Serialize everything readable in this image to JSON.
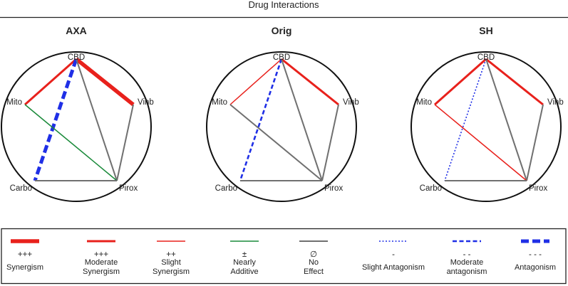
{
  "title": "Drug Interactions",
  "colors": {
    "synergy": "#e8211c",
    "additive": "#1a8a3a",
    "none": "#707070",
    "antagonism": "#1f2fe6",
    "ink": "#222222"
  },
  "nodes": {
    "CBD": "CBD",
    "Vinb": "Vinb",
    "Pirox": "Pirox",
    "Carbo": "Carbo",
    "Mito": "Mito"
  },
  "panels": [
    {
      "title": "AXA",
      "edges": [
        {
          "a": "CBD",
          "b": "Mito",
          "type": "moderate-synergism"
        },
        {
          "a": "CBD",
          "b": "Vinb",
          "type": "synergism"
        },
        {
          "a": "CBD",
          "b": "Carbo",
          "type": "antagonism"
        },
        {
          "a": "CBD",
          "b": "Pirox",
          "type": "no-effect"
        },
        {
          "a": "Vinb",
          "b": "Pirox",
          "type": "no-effect"
        },
        {
          "a": "Mito",
          "b": "Pirox",
          "type": "nearly-additive"
        },
        {
          "a": "Carbo",
          "b": "Pirox",
          "type": "no-effect"
        }
      ]
    },
    {
      "title": "Orig",
      "edges": [
        {
          "a": "CBD",
          "b": "Mito",
          "type": "slight-synergism"
        },
        {
          "a": "CBD",
          "b": "Vinb",
          "type": "moderate-synergism"
        },
        {
          "a": "CBD",
          "b": "Carbo",
          "type": "moderate-antagonism"
        },
        {
          "a": "CBD",
          "b": "Pirox",
          "type": "no-effect"
        },
        {
          "a": "Vinb",
          "b": "Pirox",
          "type": "no-effect"
        },
        {
          "a": "Mito",
          "b": "Pirox",
          "type": "no-effect"
        },
        {
          "a": "Carbo",
          "b": "Pirox",
          "type": "no-effect"
        }
      ]
    },
    {
      "title": "SH",
      "edges": [
        {
          "a": "CBD",
          "b": "Mito",
          "type": "moderate-synergism"
        },
        {
          "a": "CBD",
          "b": "Vinb",
          "type": "moderate-synergism"
        },
        {
          "a": "CBD",
          "b": "Carbo",
          "type": "slight-antagonism"
        },
        {
          "a": "CBD",
          "b": "Pirox",
          "type": "no-effect"
        },
        {
          "a": "Vinb",
          "b": "Pirox",
          "type": "no-effect"
        },
        {
          "a": "Mito",
          "b": "Pirox",
          "type": "slight-synergism"
        },
        {
          "a": "Carbo",
          "b": "Pirox",
          "type": "no-effect"
        }
      ]
    }
  ],
  "legend": [
    {
      "type": "synergism",
      "symbol": "+++",
      "label": [
        "Synergism"
      ]
    },
    {
      "type": "moderate-synergism",
      "symbol": "+++",
      "label": [
        "Moderate",
        "Synergism"
      ]
    },
    {
      "type": "slight-synergism",
      "symbol": "++",
      "label": [
        "Slight",
        "Synergism"
      ]
    },
    {
      "type": "nearly-additive",
      "symbol": "±",
      "label": [
        "Nearly",
        "Additive"
      ]
    },
    {
      "type": "no-effect",
      "symbol": "∅",
      "label": [
        "No",
        "Effect"
      ]
    },
    {
      "type": "slight-antagonism",
      "symbol": "-",
      "label": [
        "Slight Antagonism"
      ]
    },
    {
      "type": "moderate-antagonism",
      "symbol": "- -",
      "label": [
        "Moderate",
        "antagonism"
      ]
    },
    {
      "type": "antagonism",
      "symbol": "- - -",
      "label": [
        "Antagonism"
      ]
    }
  ]
}
